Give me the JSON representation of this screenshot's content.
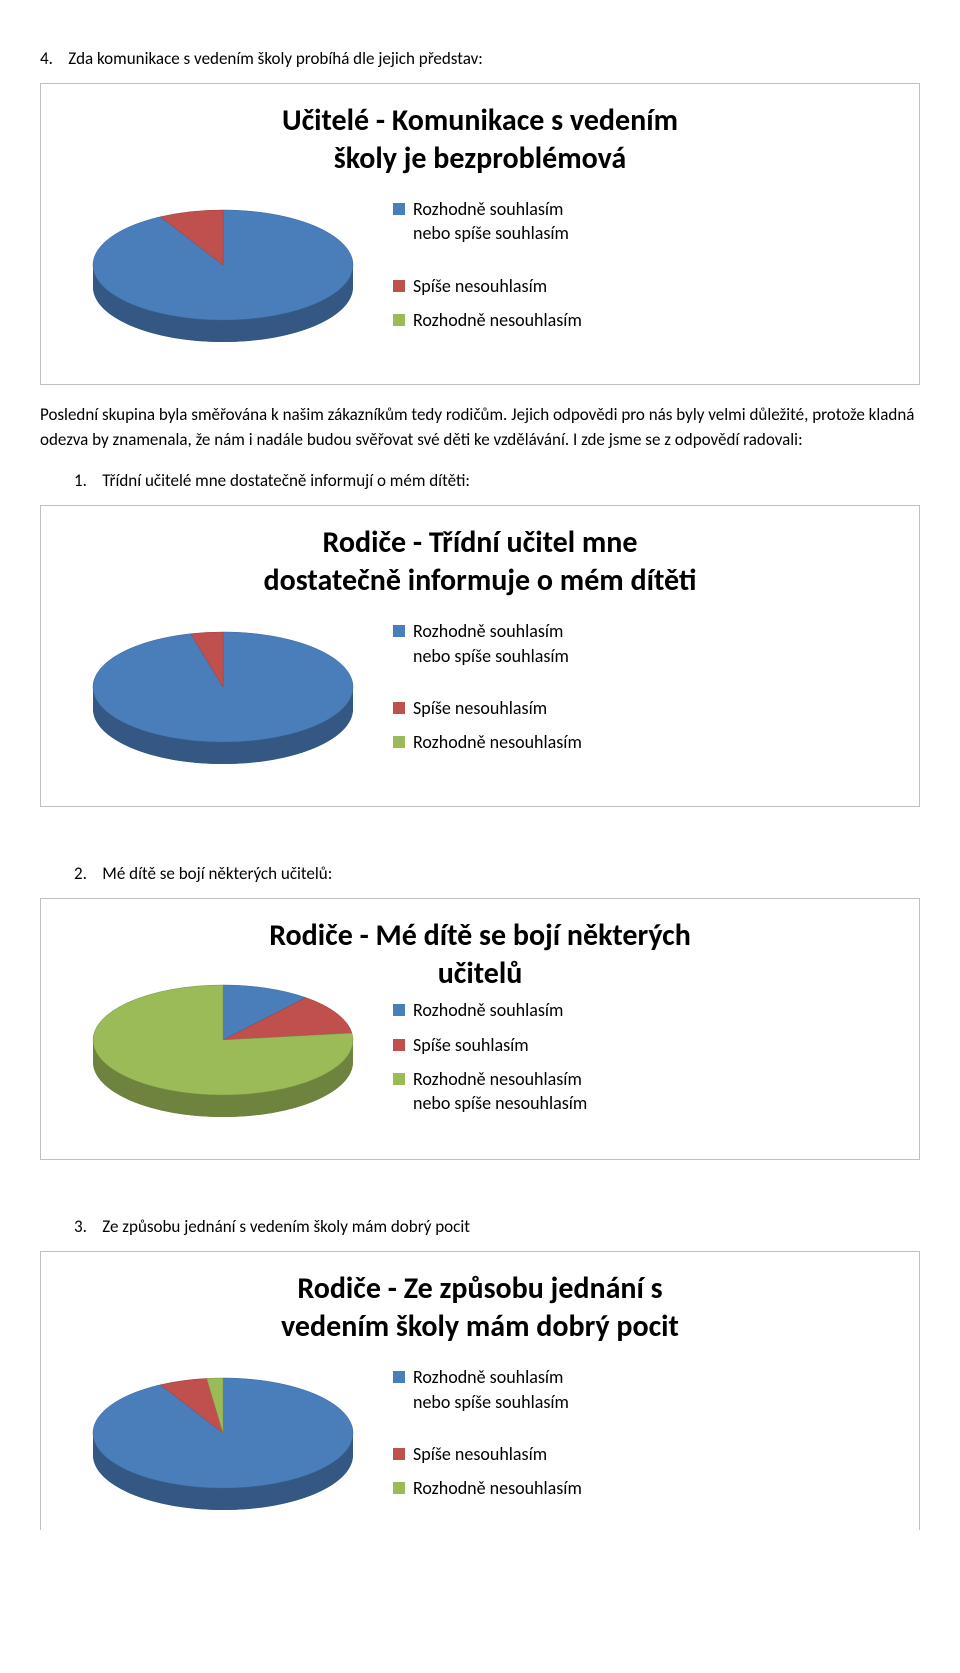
{
  "q4": {
    "number": "4.",
    "text": "Zda komunikace s vedením školy probíhá dle jejich představ:"
  },
  "chart1": {
    "title_line1": "Učitelé - Komunikace s vedením",
    "title_line2": "školy je bezproblémová",
    "type": "pie",
    "values": [
      92,
      8,
      0
    ],
    "colors": [
      "#4a7ebb",
      "#c0504d",
      "#9bbb59"
    ],
    "side_stroke": "#385d8a",
    "legend": [
      {
        "color": "#4a7ebb",
        "label": "Rozhodně souhlasím\nnebo spíše souhlasím"
      },
      {
        "color": "#c0504d",
        "label": "Spíše nesouhlasím"
      },
      {
        "color": "#9bbb59",
        "label": "Rozhodně nesouhlasím"
      }
    ],
    "gap_after": 1
  },
  "paragraph1": "Poslední skupina byla směřována k našim zákazníkům tedy rodičům. Jejich odpovědi pro nás byly velmi důležité, protože kladná odezva by znamenala, že nám i nadále budou svěřovat své děti ke vzdělávání. I zde jsme se z odpovědí radovali:",
  "q_sub1": {
    "number": "1.",
    "text": "Třídní učitelé mne dostatečně informují o mém dítěti:"
  },
  "chart2": {
    "title_line1": "Rodiče - Třídní učitel mne",
    "title_line2": "dostatečně informuje o mém dítěti",
    "type": "pie",
    "values": [
      96,
      4,
      0
    ],
    "colors": [
      "#4a7ebb",
      "#c0504d",
      "#9bbb59"
    ],
    "side_stroke": "#385d8a",
    "legend": [
      {
        "color": "#4a7ebb",
        "label": "Rozhodně souhlasím\nnebo spíše souhlasím"
      },
      {
        "color": "#c0504d",
        "label": "Spíše nesouhlasím"
      },
      {
        "color": "#9bbb59",
        "label": "Rozhodně nesouhlasím"
      }
    ],
    "gap_after": 1
  },
  "q_sub2": {
    "number": "2.",
    "text": "Mé dítě se bojí některých učitelů:"
  },
  "chart3": {
    "title_line1": "Rodiče - Mé dítě se bojí některých",
    "title_line2": "učitelů",
    "type": "pie",
    "values": [
      11,
      12,
      77
    ],
    "colors": [
      "#4a7ebb",
      "#c0504d",
      "#9bbb59"
    ],
    "side_stroke": "#71893f",
    "legend": [
      {
        "color": "#4a7ebb",
        "label": "Rozhodně souhlasím"
      },
      {
        "color": "#c0504d",
        "label": "Spíše souhlasím"
      },
      {
        "color": "#9bbb59",
        "label": "Rozhodně nesouhlasím\nnebo spíše nesouhlasím"
      }
    ],
    "gap_after": 0,
    "title_layout": "side"
  },
  "q_sub3": {
    "number": "3.",
    "text": "Ze způsobu jednání s vedením školy mám dobrý pocit"
  },
  "chart4": {
    "title_line1": "Rodiče - Ze způsobu jednání s",
    "title_line2": "vedením školy mám dobrý pocit",
    "type": "pie",
    "values": [
      92,
      6,
      2
    ],
    "colors": [
      "#4a7ebb",
      "#c0504d",
      "#9bbb59"
    ],
    "side_stroke": "#385d8a",
    "legend": [
      {
        "color": "#4a7ebb",
        "label": "Rozhodně souhlasím\nnebo spíše souhlasím"
      },
      {
        "color": "#c0504d",
        "label": "Spíše nesouhlasím"
      },
      {
        "color": "#9bbb59",
        "label": "Rozhodně nesouhlasím"
      }
    ],
    "gap_after": 1
  }
}
